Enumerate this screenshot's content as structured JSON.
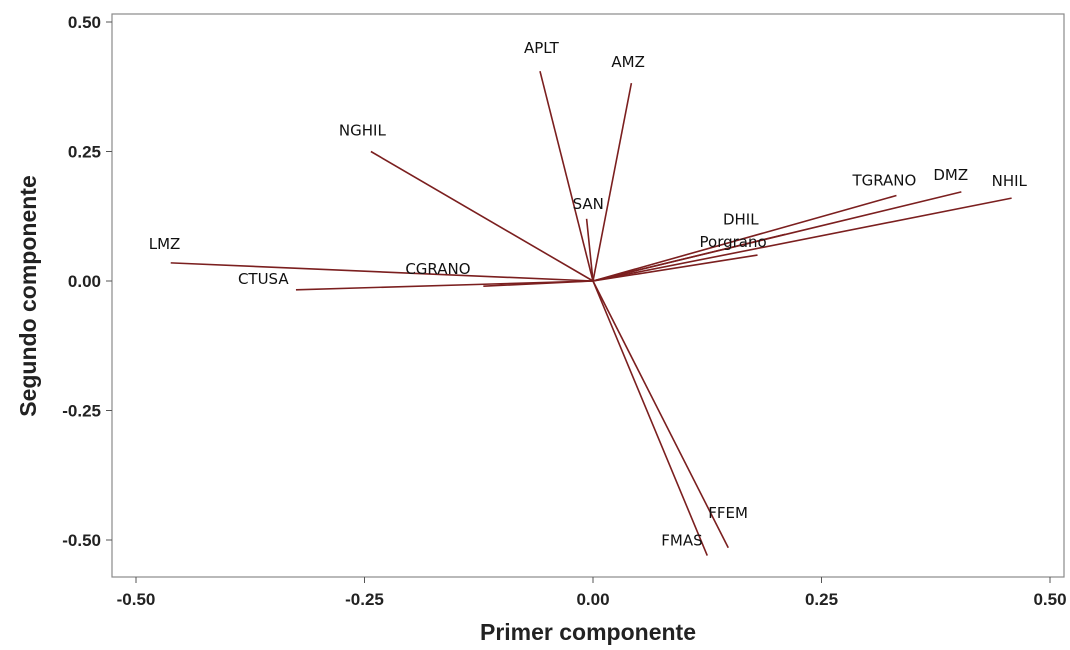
{
  "chart_data": {
    "type": "biplot",
    "title": "",
    "xlabel": "Primer componente",
    "ylabel": "Segundo componente",
    "xlim": [
      -0.52,
      0.52
    ],
    "ylim": [
      -0.57,
      0.52
    ],
    "xticks": [
      -0.5,
      -0.25,
      0.0,
      0.25,
      0.5
    ],
    "yticks": [
      -0.5,
      -0.25,
      0.0,
      0.25,
      0.5
    ],
    "xtick_labels": [
      "-0.50",
      "-0.25",
      "0.00",
      "0.25",
      "0.50"
    ],
    "ytick_labels": [
      "-0.50",
      "-0.25",
      "0.00",
      "0.25",
      "0.50"
    ],
    "grid": false,
    "line_color": "#7B1F1F",
    "vectors": [
      {
        "label": "APLT",
        "x": -0.058,
        "y": 0.405
      },
      {
        "label": "AMZ",
        "x": 0.042,
        "y": 0.382
      },
      {
        "label": "NGHIL",
        "x": -0.243,
        "y": 0.25
      },
      {
        "label": "SAN",
        "x": -0.007,
        "y": 0.12
      },
      {
        "label": "TGRANO",
        "x": 0.332,
        "y": 0.165
      },
      {
        "label": "DMZ",
        "x": 0.403,
        "y": 0.172
      },
      {
        "label": "NHIL",
        "x": 0.458,
        "y": 0.16
      },
      {
        "label": "DHIL",
        "x": 0.21,
        "y": 0.09
      },
      {
        "label": "Porgrano",
        "x": 0.18,
        "y": 0.05
      },
      {
        "label": "LMZ",
        "x": -0.462,
        "y": 0.035
      },
      {
        "label": "CTUSA",
        "x": -0.325,
        "y": -0.017
      },
      {
        "label": "CGRANO",
        "x": -0.12,
        "y": -0.01
      },
      {
        "label": "FFEM",
        "x": 0.148,
        "y": -0.515
      },
      {
        "label": "FMAS",
        "x": 0.125,
        "y": -0.53
      }
    ]
  }
}
